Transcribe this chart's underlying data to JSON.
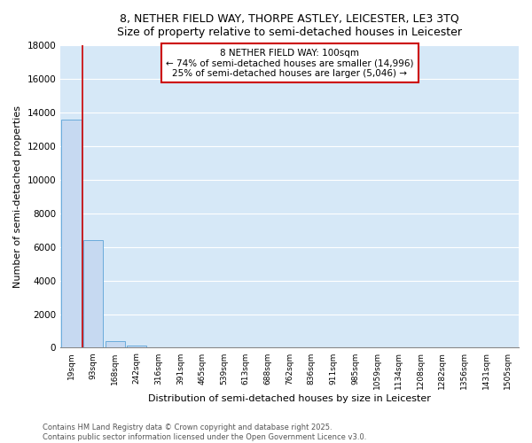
{
  "title_line1": "8, NETHER FIELD WAY, THORPE ASTLEY, LEICESTER, LE3 3TQ",
  "title_line2": "Size of property relative to semi-detached houses in Leicester",
  "xlabel": "Distribution of semi-detached houses by size in Leicester",
  "ylabel": "Number of semi-detached properties",
  "bin_labels": [
    "19sqm",
    "93sqm",
    "168sqm",
    "242sqm",
    "316sqm",
    "391sqm",
    "465sqm",
    "539sqm",
    "613sqm",
    "688sqm",
    "762sqm",
    "836sqm",
    "911sqm",
    "985sqm",
    "1059sqm",
    "1134sqm",
    "1208sqm",
    "1282sqm",
    "1356sqm",
    "1431sqm",
    "1505sqm"
  ],
  "bar_values": [
    13550,
    6400,
    400,
    130,
    0,
    0,
    0,
    0,
    0,
    0,
    0,
    0,
    0,
    0,
    0,
    0,
    0,
    0,
    0,
    0,
    0
  ],
  "bar_color": "#c6d9f1",
  "bar_edge_color": "#6aabdb",
  "vline_x": 0.5,
  "vline_color": "#cc0000",
  "annotation_box_text": "8 NETHER FIELD WAY: 100sqm\n← 74% of semi-detached houses are smaller (14,996)\n25% of semi-detached houses are larger (5,046) →",
  "annotation_facecolor": "white",
  "annotation_edgecolor": "#cc0000",
  "ylim": [
    0,
    18000
  ],
  "yticks": [
    0,
    2000,
    4000,
    6000,
    8000,
    10000,
    12000,
    14000,
    16000,
    18000
  ],
  "grid_color": "#ffffff",
  "background_color": "#d6e8f7",
  "footer_line1": "Contains HM Land Registry data © Crown copyright and database right 2025.",
  "footer_line2": "Contains public sector information licensed under the Open Government Licence v3.0."
}
